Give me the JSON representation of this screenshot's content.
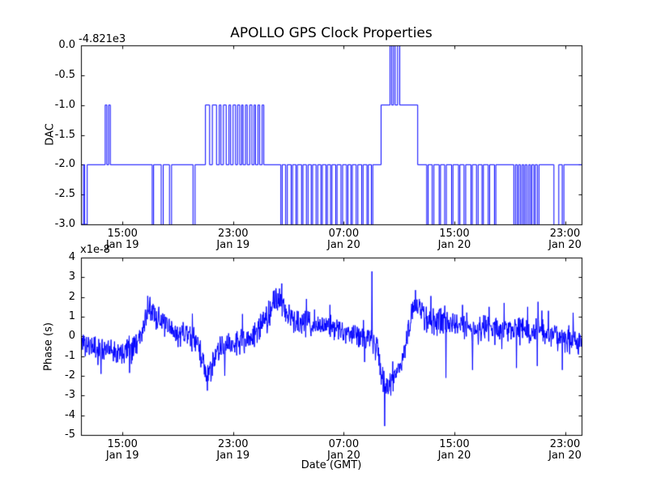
{
  "figure": {
    "title": "APOLLO GPS Clock Properties",
    "xlabel": "Date (GMT)",
    "background": "#ffffff",
    "line_color": "#0000ff",
    "axes_color": "#000000"
  },
  "xaxis": {
    "range_hours": [
      0,
      36.2
    ],
    "ticks": [
      {
        "hour": 3,
        "time": "15:00",
        "date": "Jan 19"
      },
      {
        "hour": 11,
        "time": "23:00",
        "date": "Jan 19"
      },
      {
        "hour": 19,
        "time": "07:00",
        "date": "Jan 20"
      },
      {
        "hour": 27,
        "time": "15:00",
        "date": "Jan 20"
      },
      {
        "hour": 35,
        "time": "23:00",
        "date": "Jan 20"
      }
    ]
  },
  "chart_data": [
    {
      "type": "line",
      "name": "dac",
      "ylabel": "DAC",
      "offset_label": "-4.821e3",
      "ylim": [
        -3.0,
        0.0
      ],
      "yticks": [
        0.0,
        -0.5,
        -1.0,
        -1.5,
        -2.0,
        -2.5,
        -3.0
      ],
      "ytick_labels": [
        "0.0",
        "-0.5",
        "-1.0",
        "-1.5",
        "-2.0",
        "-2.5",
        "-3.0"
      ],
      "baseline": -2,
      "step_points": [
        [
          0.0,
          -3
        ],
        [
          0.18,
          -2
        ],
        [
          0.26,
          -3
        ],
        [
          0.45,
          -2
        ],
        [
          1.75,
          -1
        ],
        [
          1.87,
          -2
        ],
        [
          2.0,
          -1
        ],
        [
          2.12,
          -2
        ],
        [
          5.15,
          -3.4
        ],
        [
          5.25,
          -2
        ],
        [
          5.8,
          -3.4
        ],
        [
          5.95,
          -2
        ],
        [
          6.4,
          -3.4
        ],
        [
          6.55,
          -2
        ],
        [
          8.1,
          -3.4
        ],
        [
          8.25,
          -2
        ],
        [
          9.0,
          -1
        ],
        [
          9.3,
          -2
        ],
        [
          9.5,
          -1
        ],
        [
          9.8,
          -2
        ],
        [
          10.0,
          -1
        ],
        [
          10.12,
          -2
        ],
        [
          10.3,
          -1
        ],
        [
          10.5,
          -2
        ],
        [
          10.7,
          -1
        ],
        [
          10.82,
          -2
        ],
        [
          11.0,
          -1
        ],
        [
          11.18,
          -2
        ],
        [
          11.32,
          -1
        ],
        [
          11.48,
          -2
        ],
        [
          11.62,
          -1
        ],
        [
          11.72,
          -2
        ],
        [
          11.9,
          -1
        ],
        [
          12.02,
          -2
        ],
        [
          12.2,
          -1
        ],
        [
          12.36,
          -2
        ],
        [
          12.52,
          -1
        ],
        [
          12.62,
          -2
        ],
        [
          12.8,
          -1
        ],
        [
          12.92,
          -2
        ],
        [
          13.1,
          -1
        ],
        [
          13.22,
          -2
        ],
        [
          14.45,
          -3.4
        ],
        [
          14.55,
          -2
        ],
        [
          14.8,
          -3.4
        ],
        [
          14.92,
          -2
        ],
        [
          15.2,
          -3.4
        ],
        [
          15.3,
          -2
        ],
        [
          15.55,
          -3.4
        ],
        [
          15.65,
          -2
        ],
        [
          15.95,
          -3.4
        ],
        [
          16.05,
          -2
        ],
        [
          16.3,
          -3.4
        ],
        [
          16.42,
          -2
        ],
        [
          16.65,
          -3.4
        ],
        [
          16.75,
          -2
        ],
        [
          17.0,
          -3.4
        ],
        [
          17.12,
          -2
        ],
        [
          17.35,
          -3.4
        ],
        [
          17.45,
          -2
        ],
        [
          17.72,
          -3.4
        ],
        [
          17.82,
          -2
        ],
        [
          18.05,
          -3.4
        ],
        [
          18.15,
          -2
        ],
        [
          18.42,
          -3.4
        ],
        [
          18.52,
          -2
        ],
        [
          18.8,
          -3.4
        ],
        [
          18.92,
          -2
        ],
        [
          19.2,
          -3.4
        ],
        [
          19.3,
          -2
        ],
        [
          19.52,
          -3.4
        ],
        [
          19.62,
          -2
        ],
        [
          19.9,
          -3.4
        ],
        [
          20.02,
          -2
        ],
        [
          20.3,
          -3.4
        ],
        [
          20.4,
          -2
        ],
        [
          20.68,
          -3.4
        ],
        [
          20.78,
          -2
        ],
        [
          21.0,
          -3.4
        ],
        [
          21.1,
          -2
        ],
        [
          21.7,
          -1
        ],
        [
          22.35,
          0.4
        ],
        [
          22.47,
          -1
        ],
        [
          22.6,
          0.4
        ],
        [
          22.72,
          -1
        ],
        [
          22.9,
          0.4
        ],
        [
          23.05,
          -1
        ],
        [
          24.35,
          -2
        ],
        [
          25.0,
          -3.4
        ],
        [
          25.1,
          -2
        ],
        [
          25.4,
          -3.4
        ],
        [
          25.52,
          -2
        ],
        [
          25.9,
          -3.4
        ],
        [
          26.0,
          -2
        ],
        [
          26.3,
          -3.4
        ],
        [
          26.42,
          -2
        ],
        [
          26.8,
          -3.4
        ],
        [
          26.9,
          -2
        ],
        [
          27.3,
          -3.4
        ],
        [
          27.4,
          -2
        ],
        [
          27.7,
          -3.4
        ],
        [
          27.82,
          -2
        ],
        [
          28.2,
          -3.4
        ],
        [
          28.3,
          -2
        ],
        [
          28.6,
          -3.4
        ],
        [
          28.72,
          -2
        ],
        [
          29.0,
          -3.4
        ],
        [
          29.1,
          -2
        ],
        [
          29.45,
          -3.4
        ],
        [
          29.55,
          -2
        ],
        [
          29.9,
          -3.4
        ],
        [
          30.0,
          -2
        ],
        [
          31.3,
          -3.4
        ],
        [
          31.42,
          -2
        ],
        [
          31.55,
          -3.4
        ],
        [
          31.65,
          -2
        ],
        [
          31.78,
          -3.4
        ],
        [
          31.9,
          -2
        ],
        [
          32.02,
          -3.4
        ],
        [
          32.12,
          -2
        ],
        [
          32.25,
          -3.4
        ],
        [
          32.38,
          -2
        ],
        [
          32.5,
          -3.4
        ],
        [
          32.6,
          -2
        ],
        [
          32.75,
          -3.4
        ],
        [
          32.85,
          -2
        ],
        [
          33.0,
          -3.4
        ],
        [
          33.12,
          -2
        ],
        [
          34.2,
          -3.4
        ],
        [
          34.55,
          -2
        ],
        [
          34.8,
          -3.4
        ],
        [
          34.92,
          -2
        ]
      ]
    },
    {
      "type": "line",
      "name": "phase",
      "ylabel": "Phase (s)",
      "scale_label": "x1e-8",
      "ylim": [
        -5,
        4
      ],
      "yticks": [
        4,
        3,
        2,
        1,
        0,
        -1,
        -2,
        -3,
        -4,
        -5
      ],
      "ytick_labels": [
        "4",
        "3",
        "2",
        "1",
        "0",
        "-1",
        "-2",
        "-3",
        "-4",
        "-5"
      ],
      "points": 1300,
      "seed": 11,
      "noise_std": 0.32,
      "trend": [
        [
          0,
          -0.2
        ],
        [
          0.6,
          -0.5
        ],
        [
          1.3,
          -0.7
        ],
        [
          2.1,
          -0.55
        ],
        [
          2.7,
          -0.75
        ],
        [
          3.3,
          -0.55
        ],
        [
          3.9,
          -0.35
        ],
        [
          4.4,
          0.3
        ],
        [
          4.9,
          1.4
        ],
        [
          5.3,
          1.1
        ],
        [
          5.8,
          0.7
        ],
        [
          6.4,
          0.35
        ],
        [
          7.1,
          0.1
        ],
        [
          7.7,
          0.15
        ],
        [
          8.4,
          -0.35
        ],
        [
          8.8,
          -1.1
        ],
        [
          9.1,
          -2.2
        ],
        [
          9.45,
          -1.5
        ],
        [
          9.9,
          -0.8
        ],
        [
          10.5,
          -0.45
        ],
        [
          11.2,
          -0.3
        ],
        [
          12,
          -0.15
        ],
        [
          12.8,
          0.25
        ],
        [
          13.5,
          1.0
        ],
        [
          14.1,
          1.9
        ],
        [
          14.5,
          1.55
        ],
        [
          15,
          1.05
        ],
        [
          15.6,
          0.7
        ],
        [
          16.5,
          0.6
        ],
        [
          17.5,
          0.5
        ],
        [
          18.5,
          0.4
        ],
        [
          19.3,
          0.25
        ],
        [
          20,
          0.1
        ],
        [
          20.6,
          -0.1
        ],
        [
          21,
          0
        ],
        [
          21.4,
          -0.7
        ],
        [
          21.8,
          -2.2
        ],
        [
          22.1,
          -2.55
        ],
        [
          22.5,
          -2.25
        ],
        [
          22.9,
          -1.7
        ],
        [
          23.3,
          -0.9
        ],
        [
          23.7,
          0.3
        ],
        [
          24.1,
          1.6
        ],
        [
          24.5,
          1.35
        ],
        [
          25,
          0.9
        ],
        [
          25.7,
          0.8
        ],
        [
          26.4,
          0.7
        ],
        [
          27.2,
          0.55
        ],
        [
          28.2,
          0.45
        ],
        [
          29.2,
          0.4
        ],
        [
          30.2,
          0.35
        ],
        [
          31.2,
          0.4
        ],
        [
          32.2,
          0.3
        ],
        [
          33.2,
          0.2
        ],
        [
          34.2,
          0.05
        ],
        [
          35.2,
          -0.2
        ],
        [
          36.2,
          -0.35
        ]
      ],
      "spikes": [
        [
          1.45,
          -1.9
        ],
        [
          3.5,
          -1.85
        ],
        [
          5.0,
          2.0
        ],
        [
          8.05,
          1.15
        ],
        [
          9.15,
          -2.75
        ],
        [
          10.4,
          -2.0
        ],
        [
          13.9,
          2.3
        ],
        [
          16.3,
          1.9
        ],
        [
          18.0,
          1.6
        ],
        [
          20.5,
          -1.3
        ],
        [
          21.05,
          3.3
        ],
        [
          21.95,
          -4.55
        ],
        [
          22.4,
          -3.0
        ],
        [
          24.2,
          2.35
        ],
        [
          25.3,
          2.05
        ],
        [
          26.4,
          -2.1
        ],
        [
          27.6,
          1.6
        ],
        [
          28.3,
          -1.7
        ],
        [
          29.5,
          1.5
        ],
        [
          30.6,
          1.7
        ],
        [
          31.5,
          -1.6
        ],
        [
          32.3,
          1.5
        ],
        [
          33.0,
          -1.5
        ],
        [
          33.8,
          1.3
        ],
        [
          34.8,
          -1.7
        ],
        [
          35.6,
          1.2
        ]
      ]
    }
  ]
}
